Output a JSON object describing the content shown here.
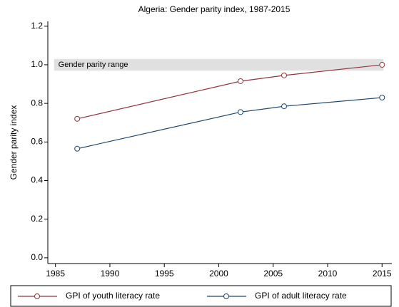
{
  "chart_data": {
    "type": "line",
    "title": "Algeria: Gender parity index, 1987-2015",
    "y_label": "Gender parity index",
    "x": [
      1987,
      2002,
      2006,
      2015
    ],
    "series": [
      {
        "name": "GPI of youth literacy rate",
        "color": "#90353b",
        "values": [
          0.72,
          0.915,
          0.945,
          1.0
        ]
      },
      {
        "name": "GPI of adult literacy rate",
        "color": "#1a476f",
        "values": [
          0.565,
          0.755,
          0.785,
          0.83
        ]
      }
    ],
    "band": {
      "label": "Gender parity range",
      "range": [
        0.97,
        1.03
      ],
      "x": [
        1985,
        2015
      ],
      "color": "#e0e0e0"
    },
    "xlim": [
      1984.3,
      2015.9
    ],
    "xticks": [
      1985,
      1990,
      1995,
      2000,
      2005,
      2010,
      2015
    ],
    "ylim": [
      -0.03,
      1.225
    ],
    "yticks": [
      {
        "value": 0,
        "label": "0.0"
      },
      {
        "value": 0.2,
        "label": "0.2"
      },
      {
        "value": 0.4,
        "label": "0.4"
      },
      {
        "value": 0.6,
        "label": "0.6"
      },
      {
        "value": 0.8,
        "label": "0.8"
      },
      {
        "value": 1.0,
        "label": "1.0"
      },
      {
        "value": 1.2,
        "label": "1.2"
      }
    ],
    "legend": "bottom",
    "grid": false
  }
}
